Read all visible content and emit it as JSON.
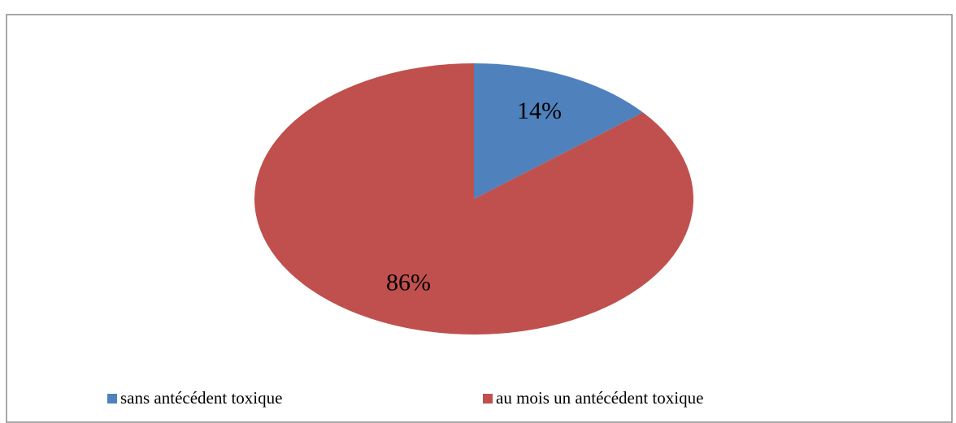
{
  "chart_data": {
    "type": "pie",
    "categories": [
      "sans antécédent toxique",
      "au mois un antécédent toxique"
    ],
    "values": [
      14,
      86
    ],
    "value_labels": [
      "14%",
      "86%"
    ],
    "colors": [
      "#4f81bd",
      "#c0504d"
    ],
    "legend": "bottom"
  }
}
